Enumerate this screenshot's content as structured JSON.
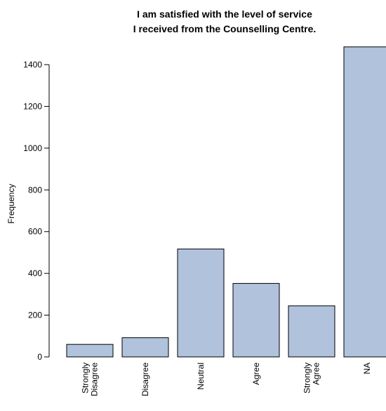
{
  "chart_data": {
    "type": "bar",
    "title_lines": [
      "I am  satisfied with the level of service",
      "I received from the Counselling Centre."
    ],
    "xlabel": "",
    "ylabel": "Frequency",
    "categories": [
      "Strongly\nDisagree",
      "Disagree",
      "Neutral",
      "Agree",
      "Strongly\nAgree",
      "NA"
    ],
    "values": [
      60,
      92,
      517,
      352,
      245,
      1485
    ],
    "ylim": [
      0,
      1400
    ],
    "yticks": [
      0,
      200,
      400,
      600,
      800,
      1000,
      1200,
      1400
    ],
    "bar_color": "#b0c2dc",
    "grid": false,
    "legend": "none"
  }
}
